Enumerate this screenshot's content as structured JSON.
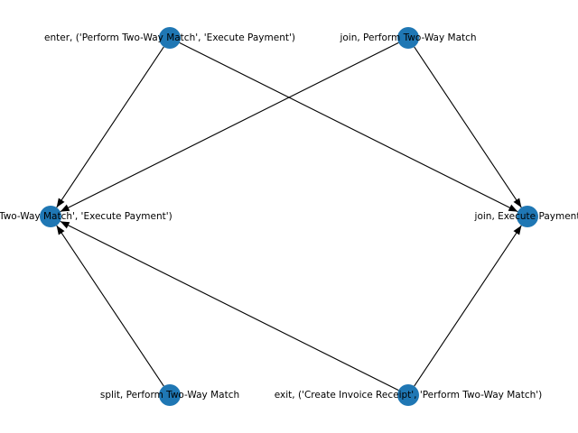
{
  "graph": {
    "node_color": "#1f77b4",
    "edge_color": "#000000",
    "nodes": [
      {
        "id": "n1",
        "label": "enter, ('Perform Two-Way Match', 'Execute Payment')"
      },
      {
        "id": "n2",
        "label": "join, Perform Two-Way Match"
      },
      {
        "id": "n3",
        "label": "exit, ('Perform Two-Way Match', 'Execute Payment')"
      },
      {
        "id": "n4",
        "label": "join, Execute Payment"
      },
      {
        "id": "n5",
        "label": "split, Perform Two-Way Match"
      },
      {
        "id": "n6",
        "label": "exit, ('Create Invoice Receipt', 'Perform Two-Way Match')"
      }
    ],
    "edges": [
      {
        "from": "n1",
        "to": "n3"
      },
      {
        "from": "n1",
        "to": "n4"
      },
      {
        "from": "n2",
        "to": "n3"
      },
      {
        "from": "n2",
        "to": "n4"
      },
      {
        "from": "n5",
        "to": "n3"
      },
      {
        "from": "n6",
        "to": "n3"
      },
      {
        "from": "n6",
        "to": "n4"
      }
    ]
  }
}
